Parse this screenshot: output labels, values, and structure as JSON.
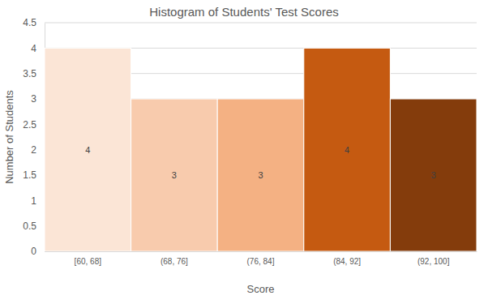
{
  "chart_data": {
    "type": "histogram",
    "title": "Histogram of Students' Test Scores",
    "x_label": "Score",
    "y_label": "Number of Students",
    "bins": [
      60,
      68,
      76,
      84,
      92,
      100
    ],
    "categories": [
      "[60, 68]",
      "(68, 76]",
      "(76, 84]",
      "(84, 92]",
      "(92, 100]"
    ],
    "values": [
      4,
      3,
      3,
      4,
      3
    ],
    "colors": [
      "#fbe5d6",
      "#f8cbad",
      "#f4b183",
      "#c55a11",
      "#843c0c"
    ],
    "xlim": [
      60,
      100
    ],
    "ylim": [
      0,
      4.5
    ],
    "yticks": [
      0,
      0.5,
      1,
      1.5,
      2,
      2.5,
      3,
      3.5,
      4,
      4.5
    ],
    "grid": true,
    "data_labels": true
  }
}
